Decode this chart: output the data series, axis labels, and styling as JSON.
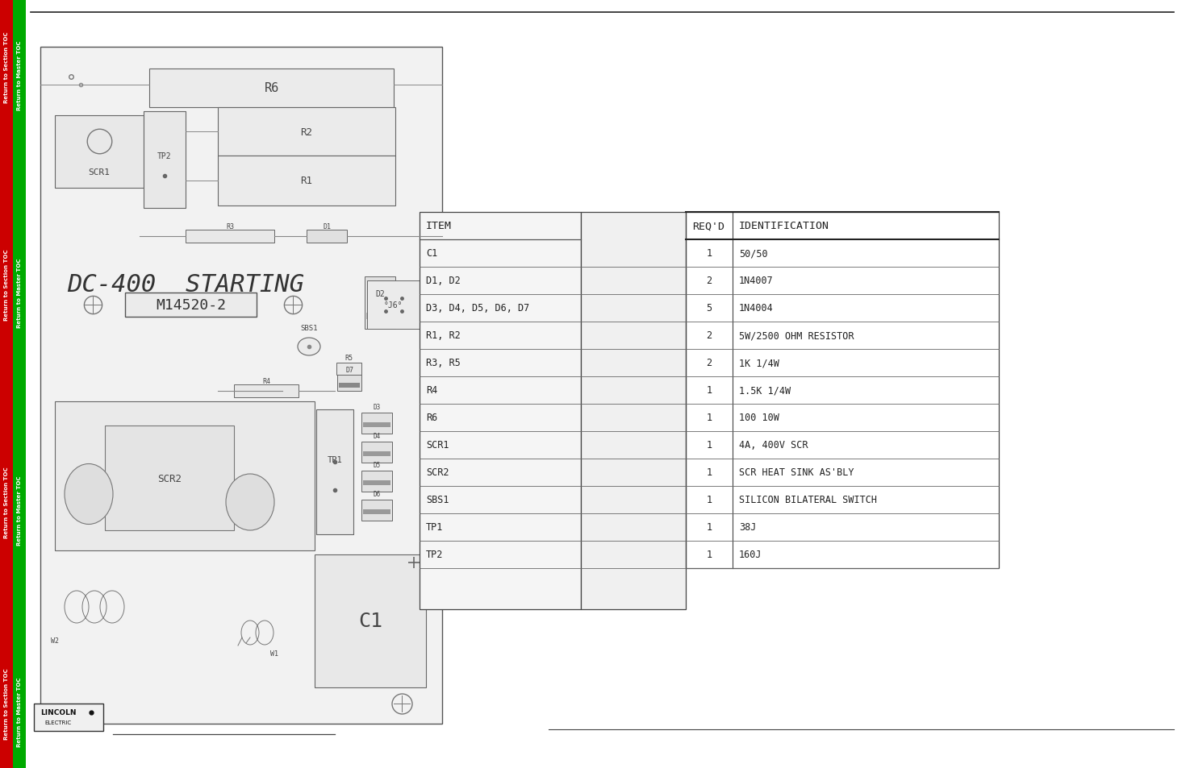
{
  "bg_color": "#ffffff",
  "sidebar_red": "#cc0000",
  "sidebar_green": "#00aa00",
  "title_line": "DC-400  STARTING",
  "part_number": "M14520-2",
  "table_items": [
    "C1",
    "D1, D2",
    "D3, D4, D5, D6, D7",
    "R1, R2",
    "R3, R5",
    "R4",
    "R6",
    "SCR1",
    "SCR2",
    "SBS1",
    "TP1",
    "TP2"
  ],
  "table_reqd": [
    "1",
    "2",
    "5",
    "2",
    "2",
    "1",
    "1",
    "1",
    "1",
    "1",
    "1",
    "1"
  ],
  "table_ids": [
    "50/50",
    "1N4007",
    "1N4004",
    "5W/2500 OHM RESISTOR",
    "1K 1/4W",
    "1.5K 1/4W",
    "100 10W",
    "4A, 400V SCR",
    "SCR HEAT SINK AS'BLY",
    "SILICON BILATERAL SWITCH",
    "38J",
    "160J"
  ],
  "col_item": "ITEM",
  "col_reqd": "REQ'D",
  "col_id": "IDENTIFICATION"
}
